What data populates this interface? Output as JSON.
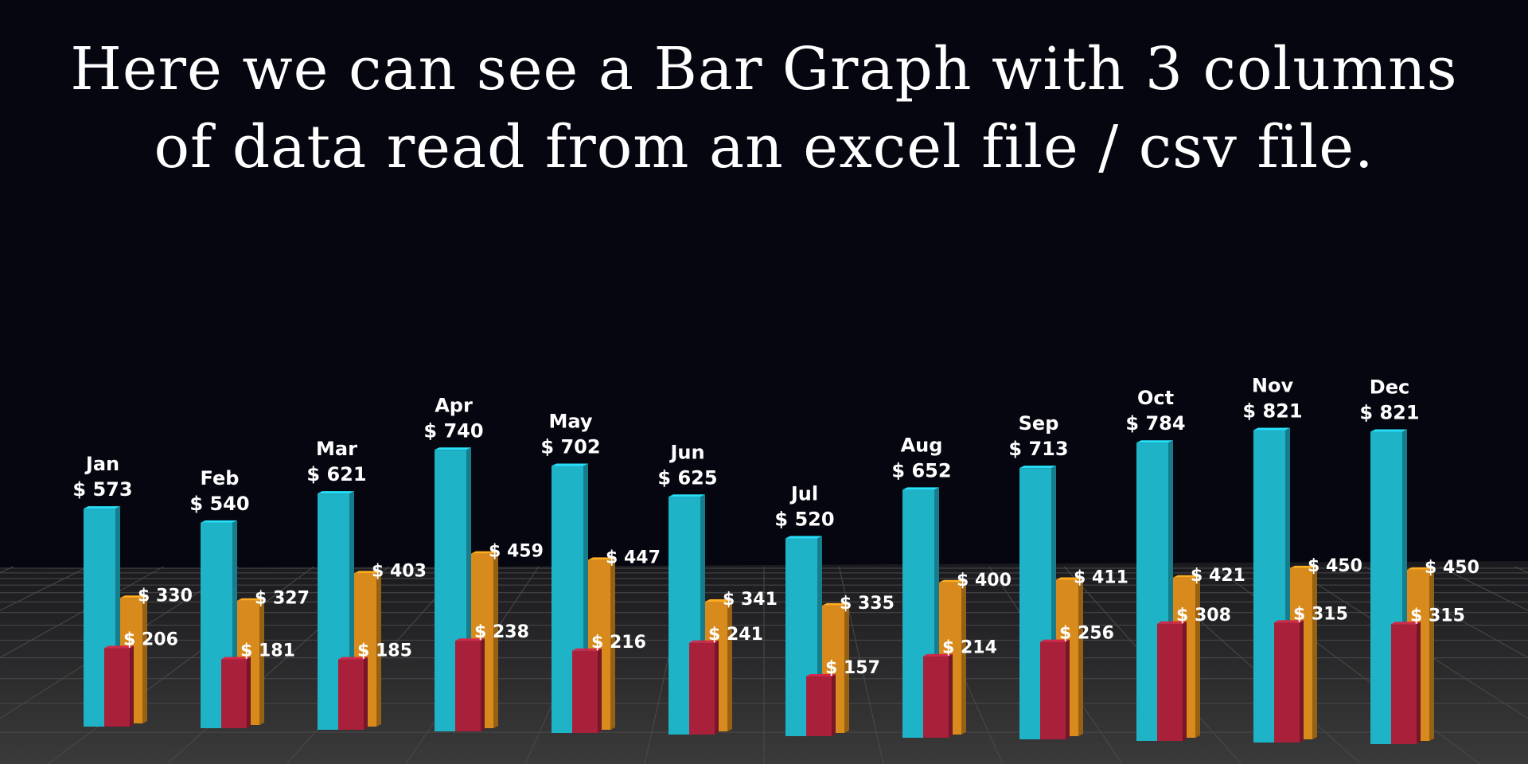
{
  "header": {
    "title_line1": "Here we can see a Bar Graph with 3 columns",
    "title_line2": "of data read from an excel file / csv file."
  },
  "currency_symbol": "$",
  "colors": {
    "background": "#05060f",
    "floor": "#2b2b2b",
    "grid": "#4a4a4a",
    "teal": "#1fb3c8",
    "orange": "#d88a1c",
    "red": "#a8203a",
    "text": "#ffffff"
  },
  "chart_data": {
    "type": "bar",
    "categories": [
      "Jan",
      "Feb",
      "Mar",
      "Apr",
      "May",
      "Jun",
      "Jul",
      "Aug",
      "Sep",
      "Oct",
      "Nov",
      "Dec"
    ],
    "series": [
      {
        "color": "#1fb3c8",
        "values": [
          573,
          540,
          621,
          740,
          702,
          625,
          520,
          652,
          713,
          784,
          821,
          821
        ]
      },
      {
        "color": "#d88a1c",
        "values": [
          330,
          327,
          403,
          459,
          447,
          341,
          335,
          400,
          411,
          421,
          450,
          450
        ]
      },
      {
        "color": "#a8203a",
        "values": [
          206,
          181,
          185,
          238,
          216,
          241,
          157,
          214,
          256,
          308,
          315,
          315
        ]
      }
    ],
    "legend": "none",
    "grid": true
  }
}
